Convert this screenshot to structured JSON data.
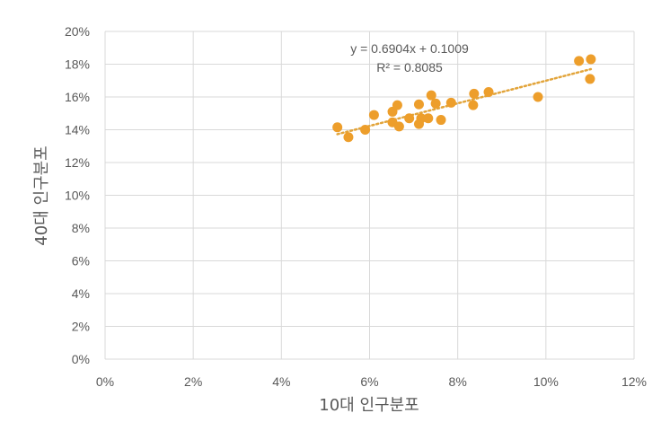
{
  "colors": {
    "marker": "#ED9E2B",
    "trendline": "#E2A43A",
    "grid": "#D9D9D9",
    "text": "#595959"
  },
  "chart_data": {
    "type": "scatter",
    "xlabel": "10대 인구분포",
    "ylabel": "40대 인구분포",
    "xlim": [
      0,
      0.12
    ],
    "ylim": [
      0,
      0.2
    ],
    "xticks": [
      "0%",
      "2%",
      "4%",
      "6%",
      "8%",
      "10%",
      "12%"
    ],
    "yticks": [
      "0%",
      "2%",
      "4%",
      "6%",
      "8%",
      "10%",
      "12%",
      "14%",
      "16%",
      "18%",
      "20%"
    ],
    "grid": true,
    "legend": "none",
    "points": [
      {
        "x": 0.0527,
        "y": 0.1415
      },
      {
        "x": 0.0552,
        "y": 0.1355
      },
      {
        "x": 0.059,
        "y": 0.14
      },
      {
        "x": 0.061,
        "y": 0.149
      },
      {
        "x": 0.0652,
        "y": 0.1445
      },
      {
        "x": 0.0652,
        "y": 0.151
      },
      {
        "x": 0.0663,
        "y": 0.155
      },
      {
        "x": 0.0667,
        "y": 0.142
      },
      {
        "x": 0.069,
        "y": 0.147
      },
      {
        "x": 0.0712,
        "y": 0.1555
      },
      {
        "x": 0.0712,
        "y": 0.1435
      },
      {
        "x": 0.0717,
        "y": 0.147
      },
      {
        "x": 0.0733,
        "y": 0.147
      },
      {
        "x": 0.074,
        "y": 0.161
      },
      {
        "x": 0.075,
        "y": 0.156
      },
      {
        "x": 0.0762,
        "y": 0.146
      },
      {
        "x": 0.0785,
        "y": 0.1565
      },
      {
        "x": 0.0835,
        "y": 0.155
      },
      {
        "x": 0.0837,
        "y": 0.162
      },
      {
        "x": 0.087,
        "y": 0.163
      },
      {
        "x": 0.0982,
        "y": 0.16
      },
      {
        "x": 0.1075,
        "y": 0.182
      },
      {
        "x": 0.11,
        "y": 0.171
      },
      {
        "x": 0.1102,
        "y": 0.183
      }
    ],
    "trendline": {
      "type": "linear",
      "slope": 0.6904,
      "intercept": 0.1009,
      "x_range": [
        0.0527,
        0.1102
      ],
      "equation": "y = 0.6904x + 0.1009",
      "r_squared": "R² = 0.8085"
    }
  }
}
